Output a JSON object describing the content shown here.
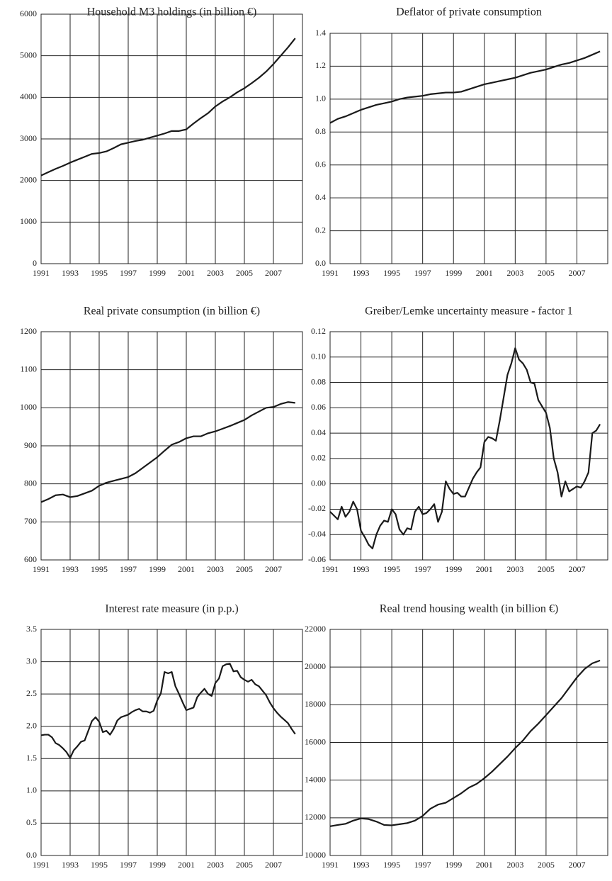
{
  "chart_data": [
    {
      "type": "line",
      "title": "Household M3 holdings (in billion €)",
      "color": "#1a1a1a",
      "grid": true,
      "x": [
        1991,
        1991.5,
        1992,
        1992.5,
        1993,
        1993.5,
        1994,
        1994.5,
        1995,
        1995.5,
        1996,
        1996.5,
        1997,
        1997.5,
        1998,
        1998.5,
        1999,
        1999.5,
        2000,
        2000.5,
        2001,
        2001.5,
        2002,
        2002.5,
        2003,
        2003.5,
        2004,
        2004.5,
        2005,
        2005.5,
        2006,
        2006.5,
        2007,
        2007.5,
        2008,
        2008.5
      ],
      "values": [
        2120,
        2200,
        2280,
        2350,
        2430,
        2500,
        2570,
        2640,
        2660,
        2700,
        2780,
        2870,
        2910,
        2950,
        2980,
        3030,
        3080,
        3130,
        3190,
        3190,
        3230,
        3370,
        3500,
        3620,
        3780,
        3900,
        4000,
        4120,
        4220,
        4340,
        4470,
        4620,
        4800,
        5000,
        5200,
        5420
      ],
      "xlim": [
        1991,
        2009
      ],
      "xticks": [
        1991,
        1993,
        1995,
        1997,
        1999,
        2001,
        2003,
        2005,
        2007
      ],
      "ylim": [
        0,
        6000
      ],
      "yticks": [
        0,
        1000,
        2000,
        3000,
        4000,
        5000,
        6000
      ]
    },
    {
      "type": "line",
      "title": "Deflator of private consumption",
      "color": "#1a1a1a",
      "grid": true,
      "x": [
        1991,
        1991.5,
        1992,
        1992.5,
        1993,
        1993.5,
        1994,
        1994.5,
        1995,
        1995.5,
        1996,
        1996.5,
        1997,
        1997.5,
        1998,
        1998.5,
        1999,
        1999.5,
        2000,
        2000.5,
        2001,
        2001.5,
        2002,
        2002.5,
        2003,
        2003.5,
        2004,
        2004.5,
        2005,
        2005.5,
        2006,
        2006.5,
        2007,
        2007.5,
        2008,
        2008.5
      ],
      "values": [
        0.855,
        0.88,
        0.895,
        0.915,
        0.935,
        0.95,
        0.965,
        0.975,
        0.985,
        1.0,
        1.01,
        1.015,
        1.02,
        1.03,
        1.035,
        1.04,
        1.04,
        1.045,
        1.06,
        1.075,
        1.09,
        1.1,
        1.11,
        1.12,
        1.13,
        1.145,
        1.16,
        1.17,
        1.18,
        1.195,
        1.21,
        1.22,
        1.235,
        1.25,
        1.27,
        1.29
      ],
      "xlim": [
        1991,
        2009
      ],
      "xticks": [
        1991,
        1993,
        1995,
        1997,
        1999,
        2001,
        2003,
        2005,
        2007
      ],
      "ylim": [
        0,
        1.4
      ],
      "yticks": [
        {
          "value": 0,
          "label": "0.0"
        },
        0.2,
        0.4,
        0.6,
        0.8,
        {
          "value": 1,
          "label": "1.0"
        },
        1.2,
        1.4
      ]
    },
    {
      "type": "line",
      "title": "Real private consumption (in  billion €)",
      "color": "#1a1a1a",
      "grid": true,
      "x": [
        1991,
        1991.5,
        1992,
        1992.5,
        1993,
        1993.5,
        1994,
        1994.5,
        1995,
        1995.5,
        1996,
        1996.5,
        1997,
        1997.5,
        1998,
        1998.5,
        1999,
        1999.5,
        2000,
        2000.5,
        2001,
        2001.5,
        2002,
        2002.5,
        2003,
        2003.5,
        2004,
        2004.5,
        2005,
        2005.5,
        2006,
        2006.5,
        2007,
        2007.5,
        2008,
        2008.5
      ],
      "values": [
        752,
        760,
        770,
        772,
        765,
        768,
        775,
        782,
        795,
        803,
        808,
        813,
        818,
        828,
        842,
        856,
        870,
        887,
        903,
        910,
        920,
        925,
        925,
        933,
        938,
        945,
        952,
        960,
        968,
        980,
        990,
        1000,
        1002,
        1010,
        1015,
        1013
      ],
      "xlim": [
        1991,
        2009
      ],
      "xticks": [
        1991,
        1993,
        1995,
        1997,
        1999,
        2001,
        2003,
        2005,
        2007
      ],
      "ylim": [
        600,
        1200
      ],
      "yticks": [
        600,
        700,
        800,
        900,
        1000,
        1100,
        1200
      ]
    },
    {
      "type": "line",
      "title": "Greiber/Lemke uncertainty measure - factor 1",
      "color": "#1a1a1a",
      "grid": true,
      "x": [
        1991,
        1991.25,
        1991.5,
        1991.75,
        1992,
        1992.25,
        1992.5,
        1992.75,
        1993,
        1993.25,
        1993.5,
        1993.75,
        1994,
        1994.25,
        1994.5,
        1994.75,
        1995,
        1995.25,
        1995.5,
        1995.75,
        1996,
        1996.25,
        1996.5,
        1996.75,
        1997,
        1997.25,
        1997.5,
        1997.75,
        1998,
        1998.25,
        1998.5,
        1998.75,
        1999,
        1999.25,
        1999.5,
        1999.75,
        2000,
        2000.25,
        2000.5,
        2000.75,
        2001,
        2001.25,
        2001.5,
        2001.75,
        2002,
        2002.25,
        2002.5,
        2002.75,
        2003,
        2003.25,
        2003.5,
        2003.75,
        2004,
        2004.25,
        2004.5,
        2004.75,
        2005,
        2005.25,
        2005.5,
        2005.75,
        2006,
        2006.25,
        2006.5,
        2006.75,
        2007,
        2007.25,
        2007.5,
        2007.75,
        2008,
        2008.25,
        2008.5
      ],
      "values": [
        -0.022,
        -0.025,
        -0.028,
        -0.018,
        -0.026,
        -0.022,
        -0.014,
        -0.02,
        -0.037,
        -0.042,
        -0.048,
        -0.051,
        -0.04,
        -0.033,
        -0.029,
        -0.03,
        -0.02,
        -0.024,
        -0.036,
        -0.04,
        -0.035,
        -0.036,
        -0.022,
        -0.018,
        -0.024,
        -0.023,
        -0.02,
        -0.016,
        -0.03,
        -0.022,
        0.002,
        -0.004,
        -0.008,
        -0.007,
        -0.01,
        -0.01,
        -0.003,
        0.004,
        0.009,
        0.013,
        0.033,
        0.037,
        0.036,
        0.034,
        0.05,
        0.068,
        0.086,
        0.095,
        0.107,
        0.098,
        0.095,
        0.09,
        0.08,
        0.079,
        0.066,
        0.061,
        0.056,
        0.044,
        0.02,
        0.009,
        -0.01,
        0.002,
        -0.006,
        -0.004,
        -0.002,
        -0.003,
        0.002,
        0.009,
        0.04,
        0.042,
        0.047
      ],
      "xlim": [
        1991,
        2009
      ],
      "xticks": [
        1991,
        1993,
        1995,
        1997,
        1999,
        2001,
        2003,
        2005,
        2007
      ],
      "ylim": [
        -0.06,
        0.12
      ],
      "yticks": [
        -0.06,
        -0.04,
        -0.02,
        {
          "value": 0,
          "label": "0.00"
        },
        0.02,
        0.04,
        0.06,
        0.08,
        {
          "value": 0.1,
          "label": "0.10"
        },
        0.12
      ]
    },
    {
      "type": "line",
      "title": "Interest rate measure (in p.p.)",
      "color": "#1a1a1a",
      "grid": true,
      "x": [
        1991,
        1991.25,
        1991.5,
        1991.75,
        1992,
        1992.25,
        1992.5,
        1992.75,
        1993,
        1993.25,
        1993.5,
        1993.75,
        1994,
        1994.25,
        1994.5,
        1994.75,
        1995,
        1995.25,
        1995.5,
        1995.75,
        1996,
        1996.25,
        1996.5,
        1996.75,
        1997,
        1997.25,
        1997.5,
        1997.75,
        1998,
        1998.25,
        1998.5,
        1998.75,
        1999,
        1999.25,
        1999.5,
        1999.75,
        2000,
        2000.25,
        2000.5,
        2000.75,
        2001,
        2001.25,
        2001.5,
        2001.75,
        2002,
        2002.25,
        2002.5,
        2002.75,
        2003,
        2003.25,
        2003.5,
        2003.75,
        2004,
        2004.25,
        2004.5,
        2004.75,
        2005,
        2005.25,
        2005.5,
        2005.75,
        2006,
        2006.25,
        2006.5,
        2006.75,
        2007,
        2007.25,
        2007.5,
        2007.75,
        2008,
        2008.25,
        2008.5
      ],
      "values": [
        1.86,
        1.87,
        1.87,
        1.83,
        1.74,
        1.71,
        1.66,
        1.6,
        1.51,
        1.63,
        1.69,
        1.76,
        1.78,
        1.93,
        2.08,
        2.14,
        2.07,
        1.91,
        1.93,
        1.87,
        1.96,
        2.09,
        2.14,
        2.16,
        2.18,
        2.22,
        2.25,
        2.27,
        2.23,
        2.23,
        2.21,
        2.24,
        2.4,
        2.51,
        2.84,
        2.82,
        2.84,
        2.62,
        2.5,
        2.37,
        2.25,
        2.27,
        2.29,
        2.45,
        2.52,
        2.58,
        2.5,
        2.47,
        2.67,
        2.74,
        2.93,
        2.96,
        2.97,
        2.85,
        2.86,
        2.76,
        2.72,
        2.69,
        2.72,
        2.65,
        2.62,
        2.55,
        2.48,
        2.37,
        2.28,
        2.21,
        2.15,
        2.1,
        2.05,
        1.96,
        1.88
      ],
      "xlim": [
        1991,
        2009
      ],
      "xticks": [
        1991,
        1993,
        1995,
        1997,
        1999,
        2001,
        2003,
        2005,
        2007
      ],
      "ylim": [
        0,
        3.5
      ],
      "yticks": [
        {
          "value": 0,
          "label": "0.0"
        },
        0.5,
        {
          "value": 1,
          "label": "1.0"
        },
        1.5,
        {
          "value": 2,
          "label": "2.0"
        },
        2.5,
        {
          "value": 3,
          "label": "3.0"
        },
        3.5
      ]
    },
    {
      "type": "line",
      "title": "Real trend housing wealth (in billion €)",
      "color": "#1a1a1a",
      "grid": true,
      "x": [
        1991,
        1991.5,
        1992,
        1992.5,
        1993,
        1993.5,
        1994,
        1994.5,
        1995,
        1995.5,
        1996,
        1996.5,
        1997,
        1997.5,
        1998,
        1998.5,
        1999,
        1999.5,
        2000,
        2000.5,
        2001,
        2001.5,
        2002,
        2002.5,
        2003,
        2003.5,
        2004,
        2004.5,
        2005,
        2005.5,
        2006,
        2006.5,
        2007,
        2007.5,
        2008,
        2008.5
      ],
      "values": [
        11550,
        11620,
        11680,
        11850,
        11970,
        11930,
        11800,
        11620,
        11600,
        11660,
        11720,
        11850,
        12100,
        12480,
        12700,
        12800,
        13050,
        13300,
        13600,
        13800,
        14100,
        14450,
        14850,
        15250,
        15700,
        16100,
        16600,
        17000,
        17450,
        17900,
        18350,
        18900,
        19450,
        19900,
        20200,
        20350
      ],
      "xlim": [
        1991,
        2009
      ],
      "xticks": [
        1991,
        1993,
        1995,
        1997,
        1999,
        2001,
        2003,
        2005,
        2007
      ],
      "ylim": [
        10000,
        22000
      ],
      "yticks": [
        10000,
        12000,
        14000,
        16000,
        18000,
        20000,
        22000
      ]
    }
  ]
}
